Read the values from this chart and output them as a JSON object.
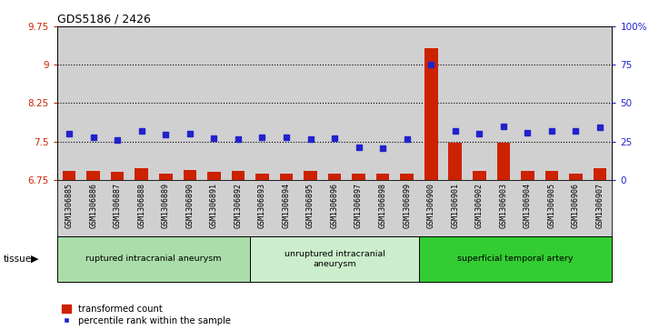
{
  "title": "GDS5186 / 2426",
  "samples": [
    "GSM1306885",
    "GSM1306886",
    "GSM1306887",
    "GSM1306888",
    "GSM1306889",
    "GSM1306890",
    "GSM1306891",
    "GSM1306892",
    "GSM1306893",
    "GSM1306894",
    "GSM1306895",
    "GSM1306896",
    "GSM1306897",
    "GSM1306898",
    "GSM1306899",
    "GSM1306900",
    "GSM1306901",
    "GSM1306902",
    "GSM1306903",
    "GSM1306904",
    "GSM1306905",
    "GSM1306906",
    "GSM1306907"
  ],
  "bar_values": [
    6.93,
    6.93,
    6.9,
    6.97,
    6.88,
    6.95,
    6.9,
    6.92,
    6.88,
    6.88,
    6.92,
    6.88,
    6.87,
    6.87,
    6.88,
    9.32,
    7.48,
    6.93,
    7.48,
    6.93,
    6.93,
    6.88,
    6.97
  ],
  "dot_values": [
    30.0,
    28.0,
    26.0,
    32.0,
    29.5,
    30.0,
    27.0,
    26.5,
    28.0,
    28.0,
    26.5,
    27.0,
    21.0,
    20.5,
    26.5,
    75.0,
    32.0,
    30.0,
    35.0,
    31.0,
    32.0,
    32.0,
    34.0
  ],
  "ylim_left": [
    6.75,
    9.75
  ],
  "ylim_right": [
    0,
    100
  ],
  "yticks_left": [
    6.75,
    7.5,
    8.25,
    9.0,
    9.75
  ],
  "ytick_labels_left": [
    "6.75",
    "7.5",
    "8.25",
    "9",
    "9.75"
  ],
  "yticks_right": [
    0,
    25,
    50,
    75,
    100
  ],
  "ytick_labels_right": [
    "0",
    "25",
    "50",
    "75",
    "100%"
  ],
  "hlines": [
    7.5,
    8.25,
    9.0
  ],
  "bar_color": "#CC2200",
  "dot_color": "#2222CC",
  "bg_color": "#D0D0D0",
  "groups": [
    {
      "label": "ruptured intracranial aneurysm",
      "start": 0,
      "end": 8,
      "color": "#AADDAA"
    },
    {
      "label": "unruptured intracranial\naneurysm",
      "start": 8,
      "end": 15,
      "color": "#CCEECC"
    },
    {
      "label": "superficial temporal artery",
      "start": 15,
      "end": 23,
      "color": "#33CC33"
    }
  ],
  "legend_bar_label": "transformed count",
  "legend_dot_label": "percentile rank within the sample",
  "tissue_label": "tissue",
  "bar_width": 0.55
}
